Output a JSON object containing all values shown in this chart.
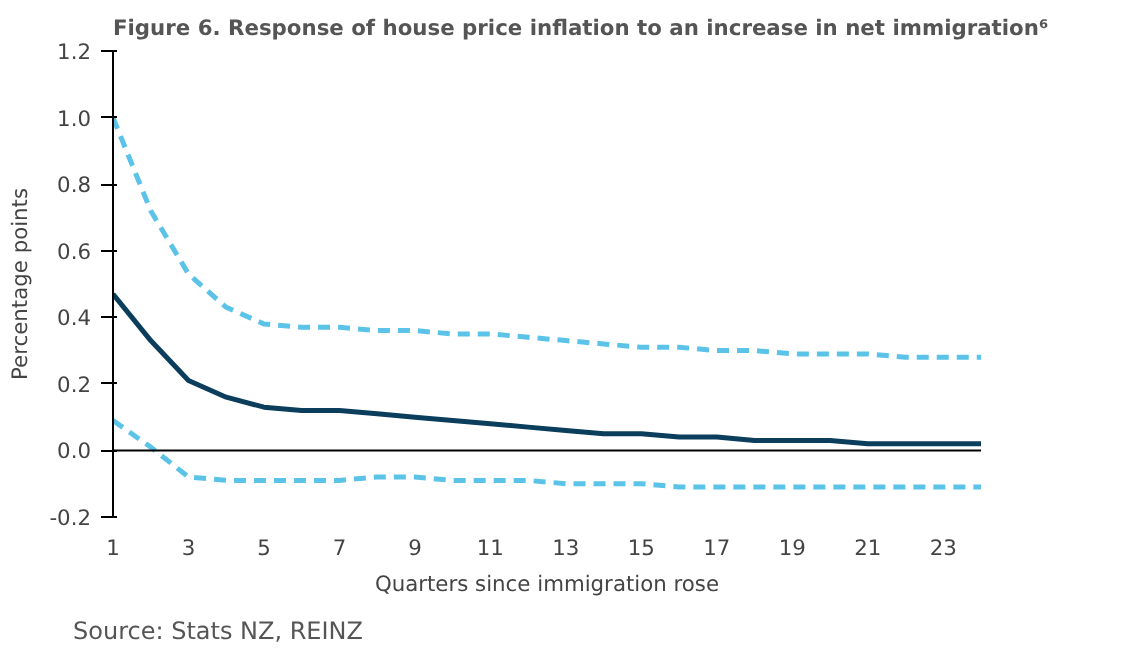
{
  "chart_data": {
    "type": "line",
    "title": "Figure 6. Response of house price inflation to an increase in net immigration⁶",
    "xlabel": "Quarters since immigration rose",
    "ylabel": "Percentage points",
    "x": [
      1,
      2,
      3,
      4,
      5,
      6,
      7,
      8,
      9,
      10,
      11,
      12,
      13,
      14,
      15,
      16,
      17,
      18,
      19,
      20,
      21,
      22,
      23,
      24
    ],
    "series": [
      {
        "color": "#0b3d5c",
        "line_style": "solid",
        "values": [
          0.47,
          0.33,
          0.21,
          0.16,
          0.13,
          0.12,
          0.12,
          0.11,
          0.1,
          0.09,
          0.08,
          0.07,
          0.06,
          0.05,
          0.05,
          0.04,
          0.04,
          0.03,
          0.03,
          0.03,
          0.02,
          0.02,
          0.02,
          0.02
        ]
      },
      {
        "color": "#5bc3e8",
        "line_style": "dashed",
        "values": [
          1.0,
          0.72,
          0.53,
          0.43,
          0.38,
          0.37,
          0.37,
          0.36,
          0.36,
          0.35,
          0.35,
          0.34,
          0.33,
          0.32,
          0.31,
          0.31,
          0.3,
          0.3,
          0.29,
          0.29,
          0.29,
          0.28,
          0.28,
          0.28
        ]
      },
      {
        "color": "#5bc3e8",
        "line_style": "dashed",
        "values": [
          0.09,
          0.01,
          -0.08,
          -0.09,
          -0.09,
          -0.09,
          -0.09,
          -0.08,
          -0.08,
          -0.09,
          -0.09,
          -0.09,
          -0.1,
          -0.1,
          -0.1,
          -0.11,
          -0.11,
          -0.11,
          -0.11,
          -0.11,
          -0.11,
          -0.11,
          -0.11,
          -0.11
        ]
      }
    ],
    "xlim": [
      1,
      24
    ],
    "ylim": [
      -0.2,
      1.2
    ],
    "xticks": [
      1,
      3,
      5,
      7,
      9,
      11,
      13,
      15,
      17,
      19,
      21,
      23
    ],
    "yticks": [
      {
        "value": -0.2,
        "label": "-0.2"
      },
      {
        "value": 0,
        "label": "0.0"
      },
      {
        "value": 0.2,
        "label": "0.2"
      },
      {
        "value": 0.4,
        "label": "0.4"
      },
      {
        "value": 0.6,
        "label": "0.6"
      },
      {
        "value": 0.8,
        "label": "0.8"
      },
      {
        "value": 1.0,
        "label": "1.0"
      },
      {
        "value": 1.2,
        "label": "1.2"
      }
    ],
    "ref_lines": [
      {
        "axis": "y",
        "value": 0,
        "color": "#000000"
      }
    ],
    "grid": false,
    "marker": "none",
    "annotations": [
      "Source: Stats NZ, REINZ"
    ]
  }
}
